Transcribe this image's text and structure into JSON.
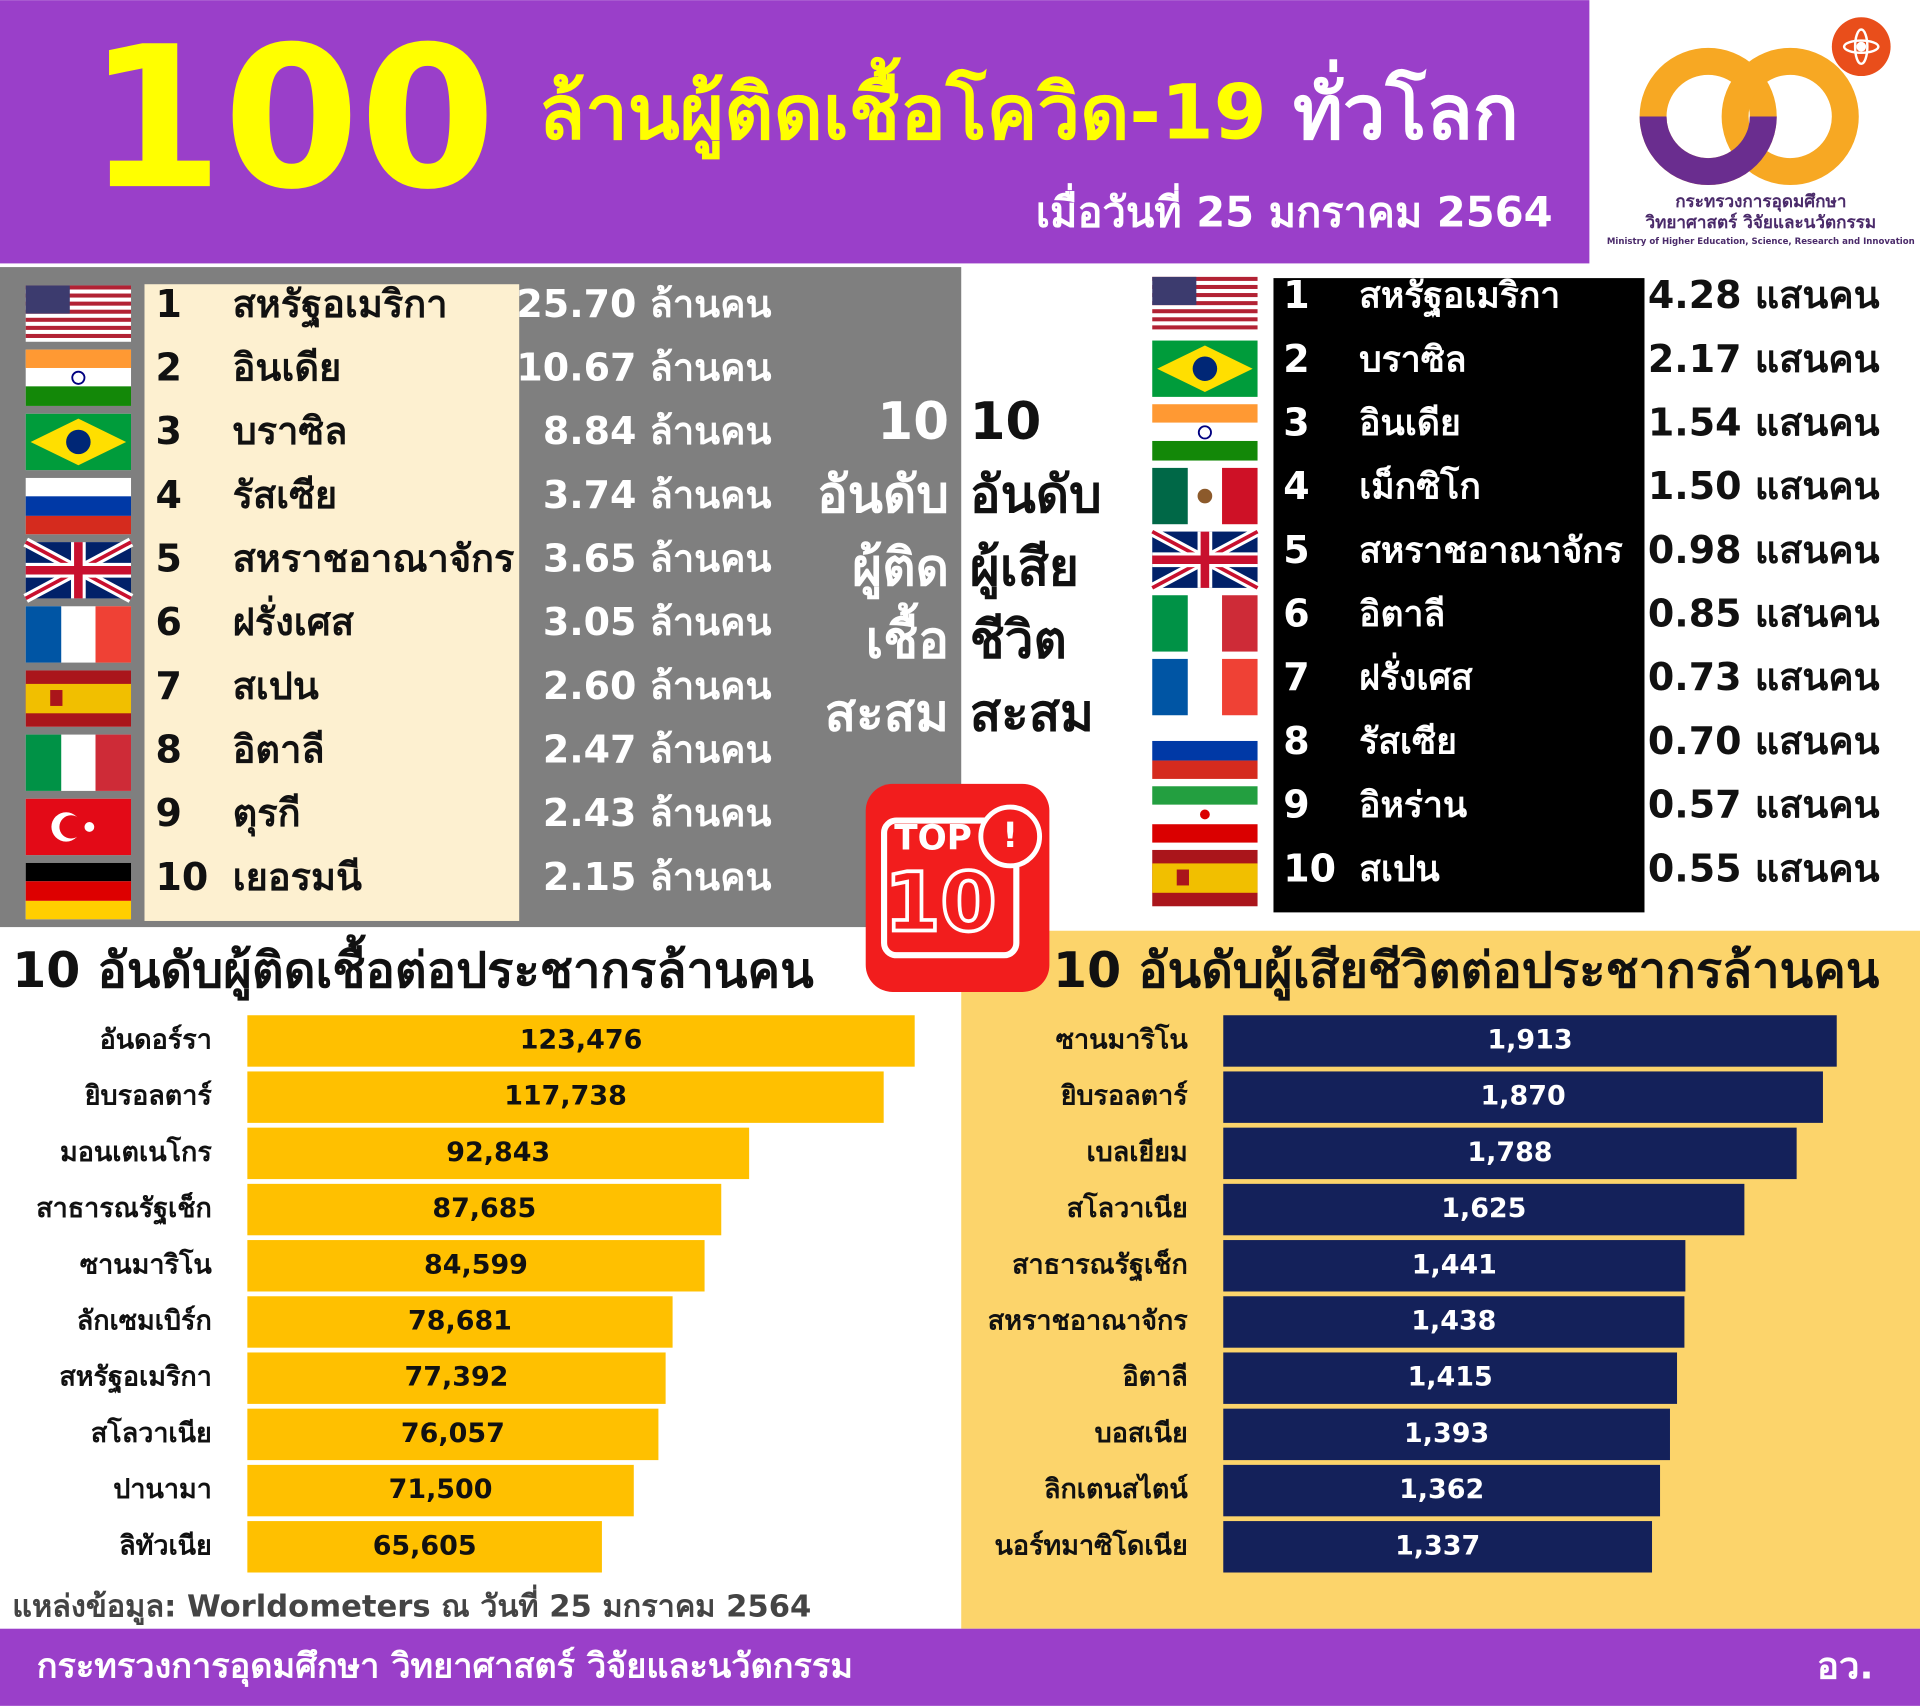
{
  "header": {
    "big": "100",
    "title_main": "ล้านผู้ติดเชื้อโควิด-19",
    "title_end": "ทั่วโลก",
    "subtitle": "เมื่อวันที่ 25 มกราคม 2564",
    "logo": [
      "กระทรวงการอุดมศึกษา",
      "วิทยาศาสตร์ วิจัยและนวัตกรรม",
      "Ministry of Higher Education, Science, Research and Innovation"
    ]
  },
  "infected_table": {
    "rows": [
      [
        "1",
        "สหรัฐอเมริกา",
        "25.70 ล้านคน"
      ],
      [
        "2",
        "อินเดีย",
        "10.67 ล้านคน"
      ],
      [
        "3",
        "บราซิล",
        "8.84 ล้านคน"
      ],
      [
        "4",
        "รัสเซีย",
        "3.74 ล้านคน"
      ],
      [
        "5",
        "สหราชอาณาจักร",
        "3.65 ล้านคน"
      ],
      [
        "6",
        "ฝรั่งเศส",
        "3.05 ล้านคน"
      ],
      [
        "7",
        "สเปน",
        "2.60 ล้านคน"
      ],
      [
        "8",
        "อิตาลี",
        "2.47 ล้านคน"
      ],
      [
        "9",
        "ตุรกี",
        "2.43 ล้านคน"
      ],
      [
        "10",
        "เยอรมนี",
        "2.15 ล้านคน"
      ]
    ]
  },
  "deaths_table": {
    "rows": [
      [
        "1",
        "สหรัฐอเมริกา",
        "4.28 แสนคน"
      ],
      [
        "2",
        "บราซิล",
        "2.17 แสนคน"
      ],
      [
        "3",
        "อินเดีย",
        "1.54 แสนคน"
      ],
      [
        "4",
        "เม็กซิโก",
        "1.50 แสนคน"
      ],
      [
        "5",
        "สหราชอาณาจักร",
        "0.98 แสนคน"
      ],
      [
        "6",
        "อิตาลี",
        "0.85 แสนคน"
      ],
      [
        "7",
        "ฝรั่งเศส",
        "0.73 แสนคน"
      ],
      [
        "8",
        "รัสเซีย",
        "0.70 แสนคน"
      ],
      [
        "9",
        "อิหร่าน",
        "0.57 แสนคน"
      ],
      [
        "10",
        "สเปน",
        "0.55 แสนคน"
      ]
    ]
  },
  "center": {
    "left": [
      "10",
      "อันดับ",
      "ผู้ติด",
      "เชื้อ",
      "สะสม"
    ],
    "right": [
      "10",
      "อันดับ",
      "ผู้เสีย",
      "ชีวิต",
      "สะสม"
    ]
  },
  "badge": {
    "top": "TOP",
    "num": "10",
    "alert": "!"
  },
  "chart_data": [
    {
      "type": "bar",
      "orientation": "horizontal",
      "title": "10 อันดับผู้ติดเชื้อต่อประชากรล้านคน",
      "color": "#ffc000",
      "categories": [
        "อันดอร์รา",
        "ยิบรอลตาร์",
        "มอนเตเนโกร",
        "สาธารณรัฐเช็ก",
        "ซานมาริโน",
        "ลักเซมเบิร์ก",
        "สหรัฐอเมริกา",
        "สโลวาเนีย",
        "ปานามา",
        "ลิทัวเนีย"
      ],
      "values": [
        123476,
        117738,
        92843,
        87685,
        84599,
        78681,
        77392,
        76057,
        71500,
        65605
      ],
      "value_labels": [
        "123,476",
        "117,738",
        "92,843",
        "87,685",
        "84,599",
        "78,681",
        "77,392",
        "76,057",
        "71,500",
        "65,605"
      ]
    },
    {
      "type": "bar",
      "orientation": "horizontal",
      "title": "10 อันดับผู้เสียชีวิตต่อประชากรล้านคน",
      "color": "#14215a",
      "categories": [
        "ซานมาริโน",
        "ยิบรอลตาร์",
        "เบลเยียม",
        "สโลวาเนีย",
        "สาธารณรัฐเช็ก",
        "สหราชอาณาจักร",
        "อิตาลี",
        "บอสเนีย",
        "ลิกเตนสไตน์",
        "นอร์ทมาซิโดเนีย"
      ],
      "values": [
        1913,
        1870,
        1788,
        1625,
        1441,
        1438,
        1415,
        1393,
        1362,
        1337
      ],
      "value_labels": [
        "1,913",
        "1,870",
        "1,788",
        "1,625",
        "1,441",
        "1,438",
        "1,415",
        "1,393",
        "1,362",
        "1,337"
      ]
    }
  ],
  "source": "แหล่งข้อมูล: Worldometers ณ วันที่ 25 มกราคม 2564",
  "footer": {
    "left": "กระทรวงการอุดมศึกษา วิทยาศาสตร์ วิจัยและนวัตกรรม",
    "right": "อว."
  }
}
